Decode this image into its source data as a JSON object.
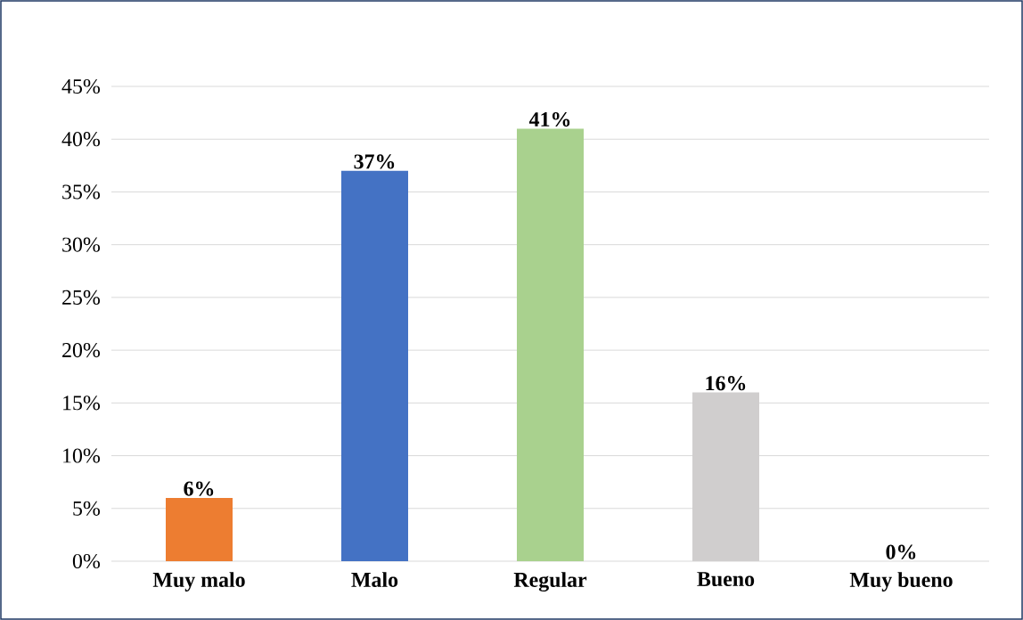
{
  "chart_data": {
    "type": "bar",
    "categories": [
      "Muy malo",
      "Malo",
      "Regular",
      "Bueno",
      "Muy bueno"
    ],
    "values": [
      6,
      37,
      41,
      16,
      0
    ],
    "colors": [
      "#ed7d31",
      "#4472c4",
      "#a9d18e",
      "#d0cece",
      "#c9c400"
    ],
    "value_labels": [
      "6%",
      "37%",
      "41%",
      "16%",
      "0%"
    ],
    "ylim": [
      0,
      45
    ],
    "yticks": [
      {
        "value": 0,
        "label": "0%"
      },
      {
        "value": 5,
        "label": "5%"
      },
      {
        "value": 10,
        "label": "10%"
      },
      {
        "value": 15,
        "label": "15%"
      },
      {
        "value": 20,
        "label": "20%"
      },
      {
        "value": 25,
        "label": "25%"
      },
      {
        "value": 30,
        "label": "30%"
      },
      {
        "value": 35,
        "label": "35%"
      },
      {
        "value": 40,
        "label": "40%"
      },
      {
        "value": 45,
        "label": "45%"
      }
    ],
    "grid": "y"
  }
}
